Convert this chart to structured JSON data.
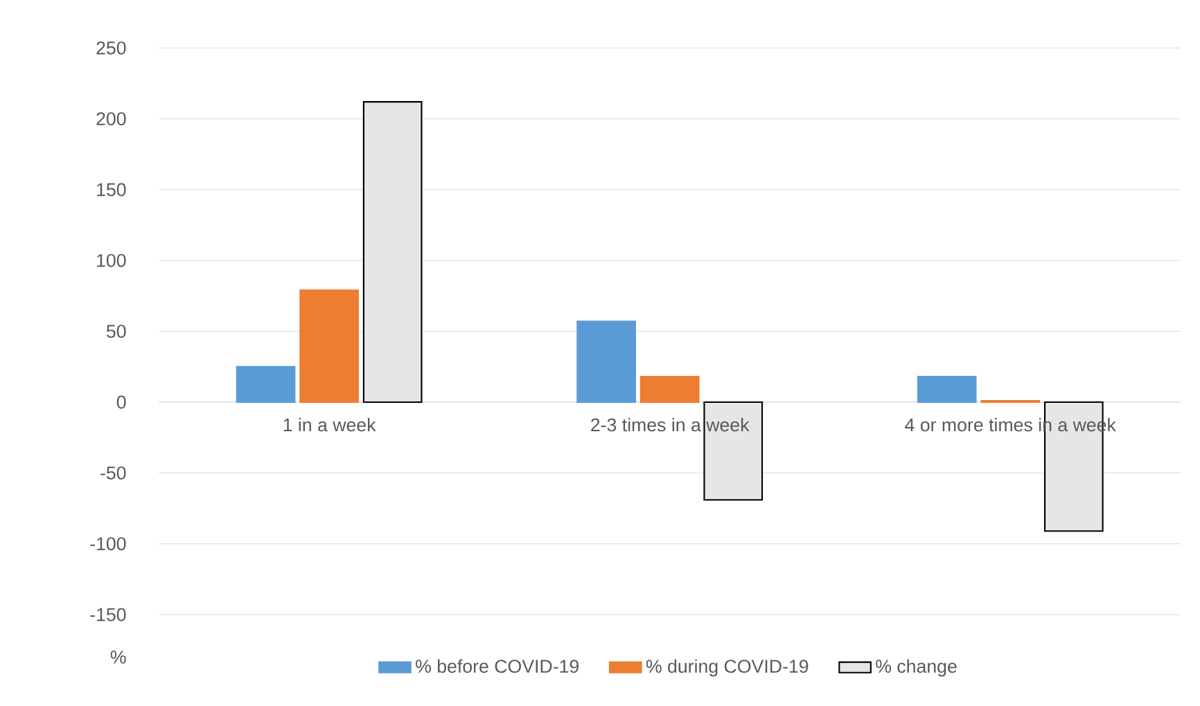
{
  "chart_data": {
    "type": "bar",
    "ylabel": "%",
    "categories": [
      "1 in a week",
      "2-3 times in a week",
      "4  or more  times in a week"
    ],
    "series": [
      {
        "name": "% before COVID-19",
        "color": "#5b9bd5",
        "values": [
          25,
          57,
          18
        ]
      },
      {
        "name": "% during COVID-19",
        "color": "#ed7d31",
        "values": [
          79,
          18,
          1
        ]
      },
      {
        "name": "% change",
        "color": "#e7e6e6",
        "values": [
          212,
          -69,
          -91
        ]
      }
    ],
    "ylim": [
      -150,
      250
    ],
    "yticks": [
      -150,
      -100,
      -50,
      0,
      50,
      100,
      150,
      200,
      250
    ],
    "grid": "y",
    "legend": "bottom"
  }
}
